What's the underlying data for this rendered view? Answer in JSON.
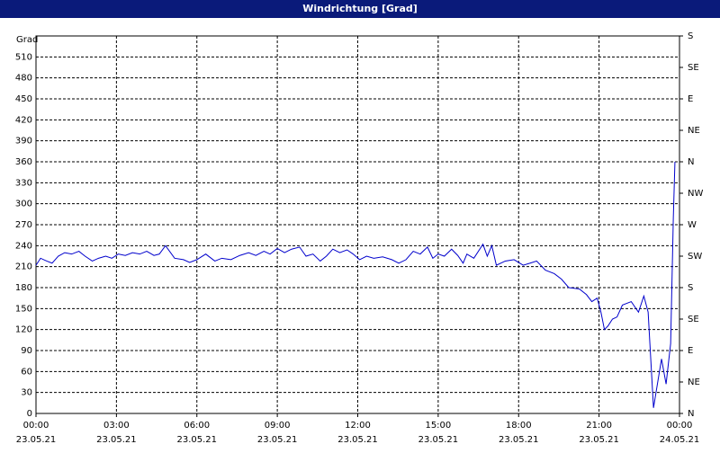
{
  "window_title": "Windrichtung [Grad]",
  "chart_data": {
    "type": "line",
    "ylabel": "Grad",
    "color": "#0000cc",
    "grid": true,
    "xlim": [
      0,
      24
    ],
    "ylim": [
      0,
      540
    ],
    "y2lim": [
      0,
      540
    ],
    "xticks": [
      {
        "value": 0,
        "label": "00:00"
      },
      {
        "value": 3,
        "label": "03:00"
      },
      {
        "value": 6,
        "label": "06:00"
      },
      {
        "value": 9,
        "label": "09:00"
      },
      {
        "value": 12,
        "label": "12:00"
      },
      {
        "value": 15,
        "label": "15:00"
      },
      {
        "value": 18,
        "label": "18:00"
      },
      {
        "value": 21,
        "label": "21:00"
      },
      {
        "value": 24,
        "label": "00:00"
      }
    ],
    "xtick_dates": [
      "23.05.21",
      "23.05.21",
      "23.05.21",
      "23.05.21",
      "23.05.21",
      "23.05.21",
      "23.05.21",
      "23.05.21",
      "24.05.21"
    ],
    "yticks": [
      0,
      30,
      60,
      90,
      120,
      150,
      180,
      210,
      240,
      270,
      300,
      330,
      360,
      390,
      420,
      450,
      480,
      510
    ],
    "y2ticks": [
      {
        "value": 0,
        "label": "N"
      },
      {
        "value": 45,
        "label": "NE"
      },
      {
        "value": 90,
        "label": "E"
      },
      {
        "value": 135,
        "label": "SE"
      },
      {
        "value": 180,
        "label": "S"
      },
      {
        "value": 225,
        "label": "SW"
      },
      {
        "value": 270,
        "label": "W"
      },
      {
        "value": 315,
        "label": "NW"
      },
      {
        "value": 360,
        "label": "N"
      },
      {
        "value": 405,
        "label": "NE"
      },
      {
        "value": 450,
        "label": "E"
      },
      {
        "value": 495,
        "label": "SE"
      },
      {
        "value": 540,
        "label": "S"
      }
    ],
    "x": [
      0,
      0.17,
      0.4,
      0.6,
      0.83,
      1.07,
      1.33,
      1.6,
      1.83,
      2.1,
      2.33,
      2.6,
      2.83,
      3.07,
      3.33,
      3.6,
      3.87,
      4.13,
      4.4,
      4.6,
      4.83,
      5.17,
      5.5,
      5.73,
      6,
      6.33,
      6.67,
      6.93,
      7.27,
      7.6,
      7.93,
      8.2,
      8.5,
      8.73,
      9,
      9.27,
      9.53,
      9.83,
      10.07,
      10.33,
      10.6,
      10.83,
      11.07,
      11.33,
      11.6,
      11.83,
      12.07,
      12.33,
      12.6,
      12.93,
      13.27,
      13.53,
      13.8,
      14.07,
      14.33,
      14.6,
      14.8,
      15,
      15.23,
      15.5,
      15.73,
      15.93,
      16.07,
      16.33,
      16.67,
      16.83,
      17,
      17.17,
      17.5,
      17.83,
      18.17,
      18.43,
      18.67,
      19,
      19.33,
      19.6,
      19.87,
      20.27,
      20.53,
      20.73,
      20.93,
      21.07,
      21.2,
      21.33,
      21.5,
      21.67,
      21.87,
      22.2,
      22.47,
      22.67,
      22.83,
      23.03,
      23.33,
      23.5,
      23.67,
      23.77,
      23.83
    ],
    "values": [
      212,
      222,
      218,
      215,
      225,
      230,
      228,
      232,
      225,
      218,
      222,
      225,
      222,
      228,
      226,
      230,
      228,
      232,
      226,
      228,
      240,
      222,
      220,
      216,
      220,
      228,
      218,
      222,
      220,
      226,
      230,
      226,
      232,
      228,
      236,
      230,
      235,
      238,
      225,
      228,
      218,
      225,
      235,
      230,
      234,
      228,
      220,
      225,
      222,
      224,
      220,
      215,
      220,
      232,
      228,
      238,
      222,
      228,
      225,
      235,
      226,
      215,
      228,
      222,
      242,
      225,
      240,
      212,
      218,
      220,
      212,
      215,
      218,
      205,
      200,
      192,
      180,
      178,
      170,
      160,
      165,
      145,
      120,
      125,
      135,
      138,
      155,
      160,
      145,
      168,
      145,
      8,
      78,
      42,
      100,
      280,
      360
    ]
  }
}
